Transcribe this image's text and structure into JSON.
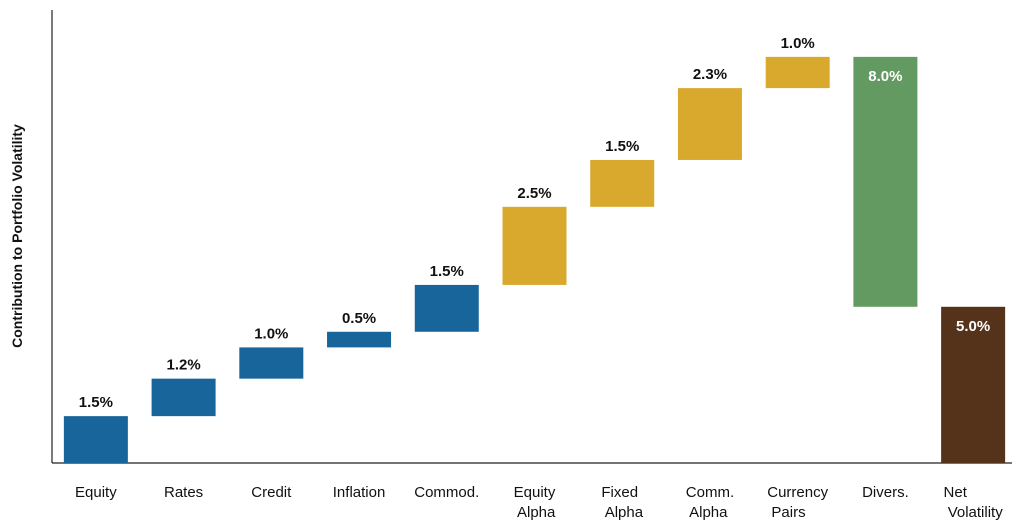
{
  "chart_data": {
    "type": "waterfall",
    "y_label": "Contribution to Portfolio Volatility",
    "categories": [
      "Equity",
      "Rates",
      "Credit",
      "Inflation",
      "Commod.",
      "Equity Alpha",
      "Fixed Alpha",
      "Comm. Alpha",
      "Currency Pairs",
      "Divers.",
      "Net Volatility"
    ],
    "values": [
      1.5,
      1.2,
      1.0,
      0.5,
      1.5,
      2.5,
      1.5,
      2.3,
      1.0,
      -8.0,
      5.0
    ],
    "value_labels": [
      "1.5%",
      "1.2%",
      "1.0%",
      "0.5%",
      "1.5%",
      "2.5%",
      "1.5%",
      "2.3%",
      "1.0%",
      "8.0%",
      "5.0%"
    ],
    "kinds": [
      "step",
      "step",
      "step",
      "step",
      "step",
      "step",
      "step",
      "step",
      "step",
      "step",
      "total"
    ],
    "colors": [
      "#17659b",
      "#17659b",
      "#17659b",
      "#17659b",
      "#17659b",
      "#d8a92c",
      "#d8a92c",
      "#d8a92c",
      "#d8a92c",
      "#629a62",
      "#55321a"
    ],
    "ylim": [
      0,
      14.5
    ]
  }
}
